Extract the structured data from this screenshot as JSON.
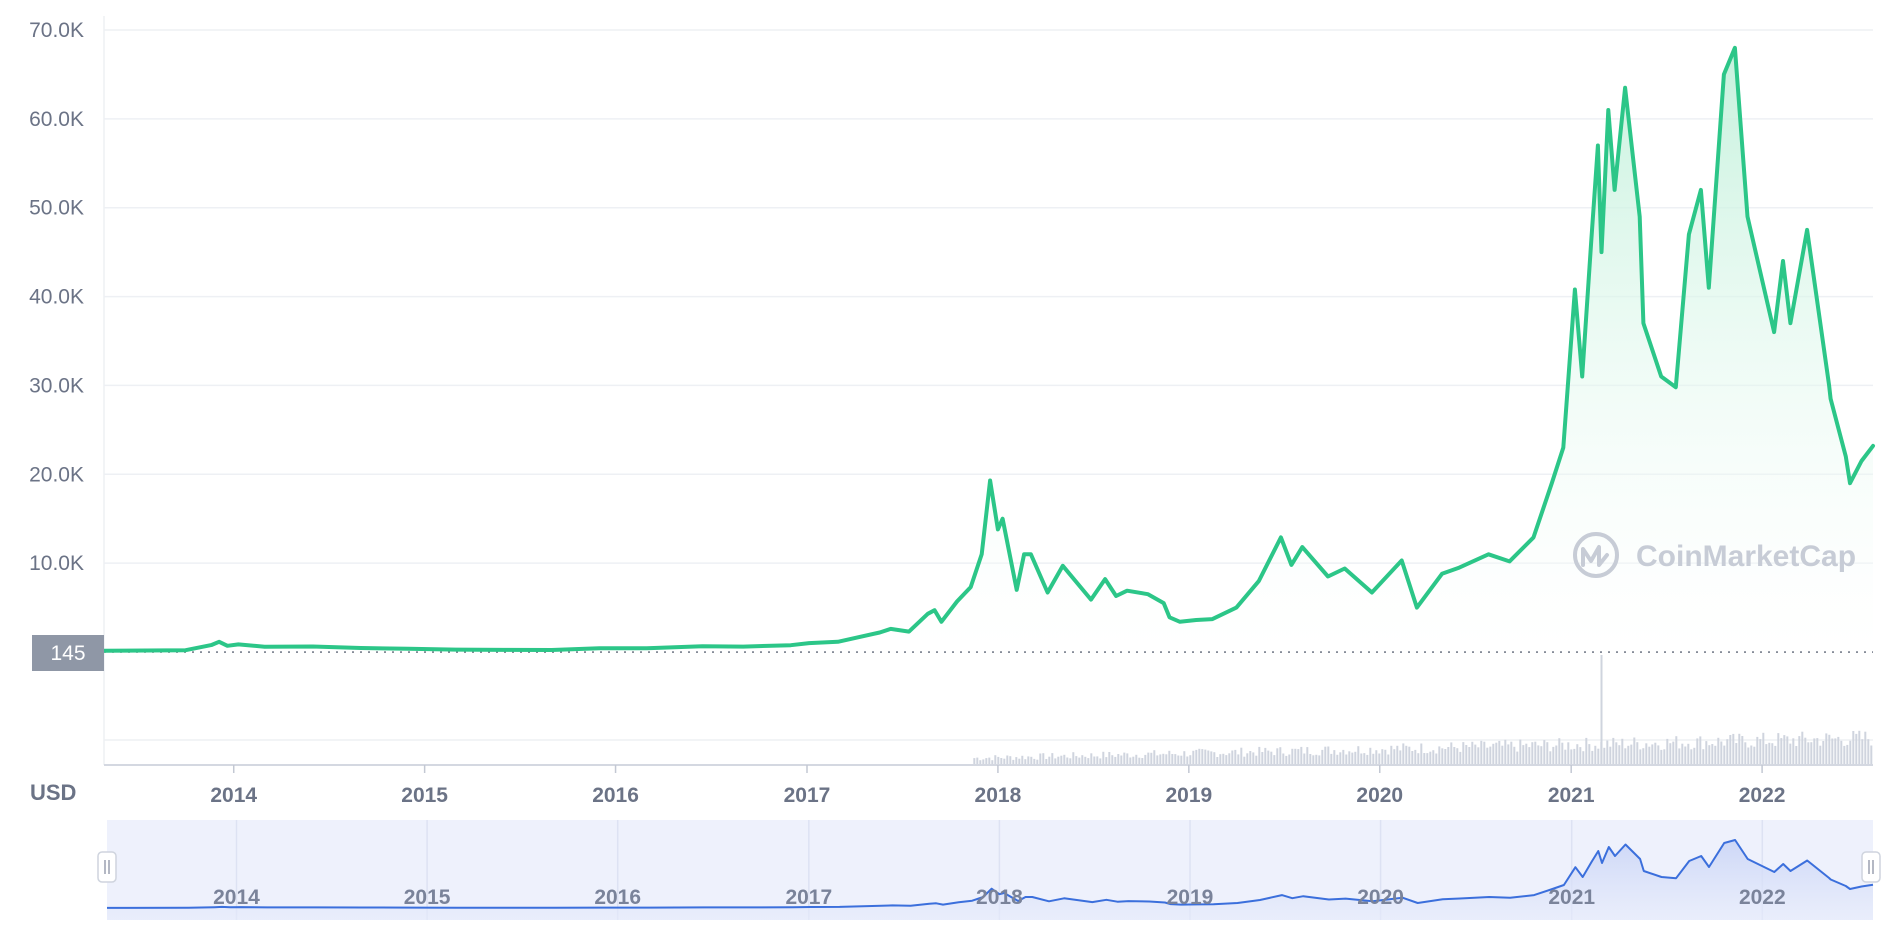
{
  "chart_data": {
    "type": "area",
    "currency_label": "USD",
    "watermark": "CoinMarketCap",
    "current_price_label": "145",
    "y_ticks": [
      "70.0K",
      "60.0K",
      "50.0K",
      "40.0K",
      "30.0K",
      "20.0K",
      "10.0K"
    ],
    "x_ticks": [
      "2014",
      "2015",
      "2016",
      "2017",
      "2018",
      "2019",
      "2020",
      "2021",
      "2022"
    ],
    "ylim": [
      0,
      70000
    ],
    "grid": true,
    "colors": {
      "line": "#2cc688",
      "area_top": "#bff0d9",
      "grid": "#eef0f4",
      "navigator_line": "#3b6fdc",
      "navigator_bg": "#eef1fc",
      "volume": "#cfd4de",
      "price_badge": "#8f97a6",
      "text": "#6b7386"
    },
    "series": [
      {
        "x": [
          "2013-04-28",
          "2013-10-01",
          "2013-11-20",
          "2013-12-04",
          "2013-12-20",
          "2014-01-10",
          "2014-03-01",
          "2014-06-01",
          "2014-09-01",
          "2014-12-01",
          "2015-03-01",
          "2015-06-01",
          "2015-09-01",
          "2015-12-01",
          "2016-03-01",
          "2016-06-15",
          "2016-09-01",
          "2016-12-01",
          "2017-01-05",
          "2017-03-01",
          "2017-05-20",
          "2017-06-10",
          "2017-07-15",
          "2017-08-20",
          "2017-09-02",
          "2017-09-15",
          "2017-10-15",
          "2017-11-10",
          "2017-12-01",
          "2017-12-17",
          "2018-01-01",
          "2018-01-10",
          "2018-02-06",
          "2018-02-20",
          "2018-03-05",
          "2018-04-06",
          "2018-05-05",
          "2018-06-28",
          "2018-07-25",
          "2018-08-15",
          "2018-09-05",
          "2018-10-15",
          "2018-11-14",
          "2018-11-25",
          "2018-12-15",
          "2019-01-15",
          "2019-02-15",
          "2019-04-02",
          "2019-05-15",
          "2019-06-26",
          "2019-07-16",
          "2019-08-06",
          "2019-09-24",
          "2019-10-26",
          "2019-12-17",
          "2020-02-12",
          "2020-03-12",
          "2020-04-29",
          "2020-06-01",
          "2020-07-27",
          "2020-09-05",
          "2020-10-21",
          "2020-11-25",
          "2020-12-17",
          "2021-01-08",
          "2021-01-22",
          "2021-02-08",
          "2021-02-21",
          "2021-02-28",
          "2021-03-13",
          "2021-03-25",
          "2021-04-14",
          "2021-05-12",
          "2021-05-19",
          "2021-06-22",
          "2021-07-20",
          "2021-08-14",
          "2021-09-06",
          "2021-09-21",
          "2021-10-20",
          "2021-11-10",
          "2021-12-04",
          "2022-01-24",
          "2022-02-10",
          "2022-02-24",
          "2022-03-28",
          "2022-05-09",
          "2022-05-12",
          "2022-06-10",
          "2022-06-18",
          "2022-07-10",
          "2022-08-01"
        ],
        "y": [
          135,
          200,
          800,
          1150,
          700,
          850,
          600,
          620,
          450,
          360,
          270,
          240,
          230,
          420,
          415,
          650,
          610,
          760,
          1000,
          1150,
          2200,
          2600,
          2300,
          4300,
          4700,
          3400,
          5700,
          7300,
          11000,
          19300,
          13800,
          15000,
          7000,
          11000,
          11000,
          6700,
          9700,
          5900,
          8200,
          6300,
          6900,
          6500,
          5500,
          3900,
          3400,
          3600,
          3700,
          5000,
          8000,
          12900,
          9800,
          11800,
          8500,
          9400,
          6700,
          10300,
          5000,
          8800,
          9500,
          11000,
          10200,
          12900,
          19000,
          23000,
          40800,
          31000,
          46000,
          57000,
          45000,
          61000,
          52000,
          63500,
          49000,
          37000,
          31000,
          29800,
          47000,
          52000,
          41000,
          65000,
          68000,
          49000,
          36000,
          44000,
          37000,
          47500,
          30000,
          28500,
          22000,
          19000,
          21500,
          23200
        ]
      }
    ]
  }
}
